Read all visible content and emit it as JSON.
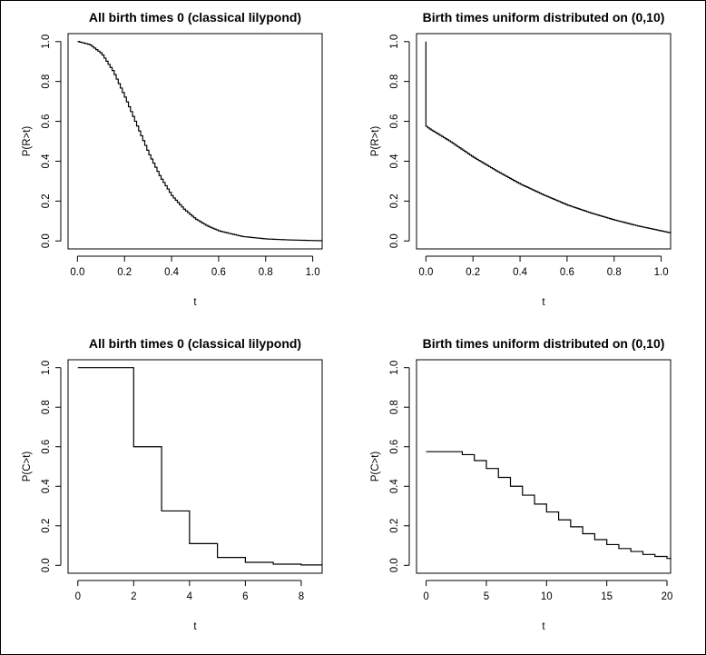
{
  "chart_data": [
    {
      "type": "line",
      "step": true,
      "title": "All birth times 0 (classical lilypond)",
      "xlabel": "t",
      "ylabel": "P(R>t)",
      "xlim": [
        -0.04,
        1.04
      ],
      "ylim": [
        -0.04,
        1.04
      ],
      "xticks": [
        0.0,
        0.2,
        0.4,
        0.6,
        0.8,
        1.0
      ],
      "xtick_labels": [
        "0.0",
        "0.2",
        "0.4",
        "0.6",
        "0.8",
        "1.0"
      ],
      "yticks": [
        0.0,
        0.2,
        0.4,
        0.6,
        0.8,
        1.0
      ],
      "ytick_labels": [
        "0.0",
        "0.2",
        "0.4",
        "0.6",
        "0.8",
        "1.0"
      ],
      "x": [
        0.0,
        0.05,
        0.1,
        0.15,
        0.2,
        0.25,
        0.3,
        0.35,
        0.4,
        0.45,
        0.5,
        0.55,
        0.6,
        0.7,
        0.8,
        0.9,
        1.0,
        1.04
      ],
      "y": [
        1.0,
        0.985,
        0.94,
        0.85,
        0.72,
        0.58,
        0.44,
        0.32,
        0.225,
        0.16,
        0.11,
        0.075,
        0.05,
        0.022,
        0.01,
        0.005,
        0.002,
        0.001
      ]
    },
    {
      "type": "line",
      "step": true,
      "title": "Birth times uniform distributed on (0,10)",
      "xlabel": "t",
      "ylabel": "P(R>t)",
      "xlim": [
        -0.04,
        1.04
      ],
      "ylim": [
        -0.04,
        1.04
      ],
      "xticks": [
        0.0,
        0.2,
        0.4,
        0.6,
        0.8,
        1.0
      ],
      "xtick_labels": [
        "0.0",
        "0.2",
        "0.4",
        "0.6",
        "0.8",
        "1.0"
      ],
      "yticks": [
        0.0,
        0.2,
        0.4,
        0.6,
        0.8,
        1.0
      ],
      "ytick_labels": [
        "0.0",
        "0.2",
        "0.4",
        "0.6",
        "0.8",
        "1.0"
      ],
      "x": [
        0.0,
        0.0,
        0.01,
        0.1,
        0.2,
        0.3,
        0.4,
        0.5,
        0.6,
        0.7,
        0.8,
        0.9,
        1.0,
        1.04
      ],
      "y": [
        1.0,
        0.575,
        0.565,
        0.5,
        0.42,
        0.35,
        0.285,
        0.23,
        0.18,
        0.14,
        0.105,
        0.075,
        0.05,
        0.04
      ]
    },
    {
      "type": "line",
      "step": true,
      "title": "All birth times 0 (classical lilypond)",
      "xlabel": "t",
      "ylabel": "P(C>t)",
      "xlim": [
        -0.35,
        8.75
      ],
      "ylim": [
        -0.04,
        1.04
      ],
      "xticks": [
        0,
        2,
        4,
        6,
        8
      ],
      "xtick_labels": [
        "0",
        "2",
        "4",
        "6",
        "8"
      ],
      "yticks": [
        0.0,
        0.2,
        0.4,
        0.6,
        0.8,
        1.0
      ],
      "ytick_labels": [
        "0.0",
        "0.2",
        "0.4",
        "0.6",
        "0.8",
        "1.0"
      ],
      "x": [
        0,
        1,
        2,
        3,
        4,
        5,
        6,
        7,
        8,
        8.75
      ],
      "y": [
        1.0,
        1.0,
        0.6,
        0.275,
        0.11,
        0.04,
        0.015,
        0.006,
        0.002,
        0.002
      ]
    },
    {
      "type": "line",
      "step": true,
      "title": "Birth times uniform distributed on (0,10)",
      "xlabel": "t",
      "ylabel": "P(C>t)",
      "xlim": [
        -0.8,
        20.3
      ],
      "ylim": [
        -0.04,
        1.04
      ],
      "xticks": [
        0,
        5,
        10,
        15,
        20
      ],
      "xtick_labels": [
        "0",
        "5",
        "10",
        "15",
        "20"
      ],
      "yticks": [
        0.0,
        0.2,
        0.4,
        0.6,
        0.8,
        1.0
      ],
      "ytick_labels": [
        "0.0",
        "0.2",
        "0.4",
        "0.6",
        "0.8",
        "1.0"
      ],
      "x": [
        0,
        1,
        2,
        3,
        4,
        5,
        6,
        7,
        8,
        9,
        10,
        11,
        12,
        13,
        14,
        15,
        16,
        17,
        18,
        19,
        20,
        20.3
      ],
      "y": [
        0.575,
        0.575,
        0.575,
        0.56,
        0.53,
        0.49,
        0.445,
        0.4,
        0.355,
        0.31,
        0.27,
        0.23,
        0.195,
        0.16,
        0.13,
        0.105,
        0.085,
        0.07,
        0.055,
        0.045,
        0.035,
        0.03
      ]
    }
  ]
}
